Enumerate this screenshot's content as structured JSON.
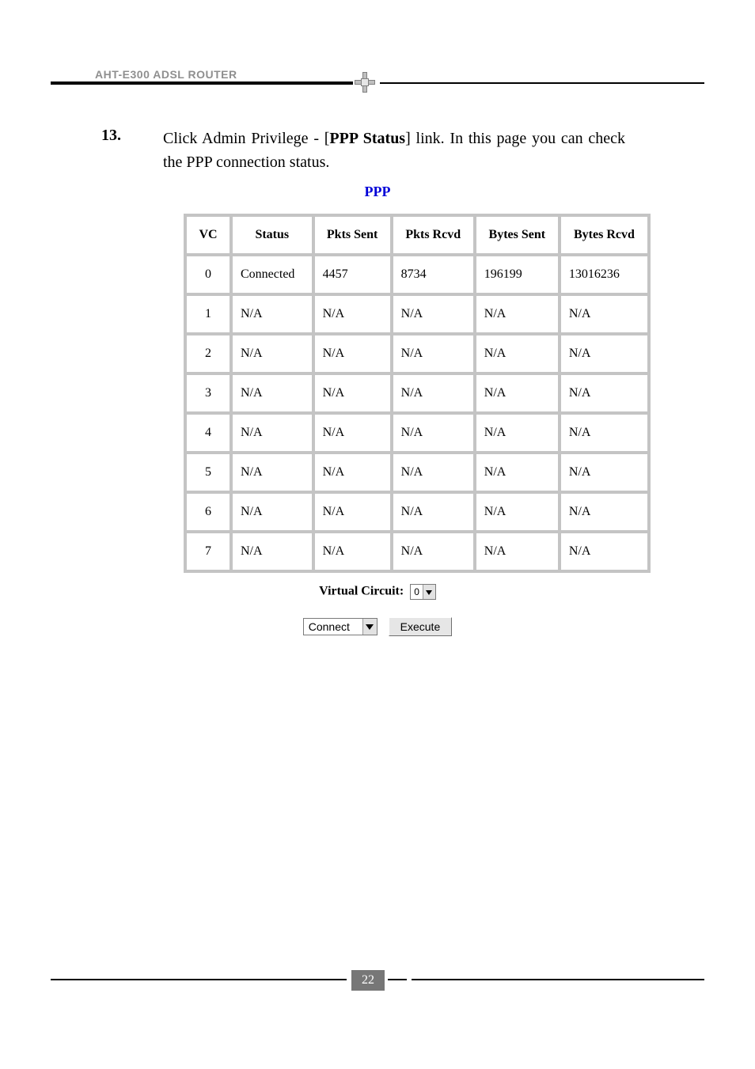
{
  "header": {
    "product": "AHT-E300 ADSL ROUTER"
  },
  "step": {
    "number": "13.",
    "text_pre": "Click Admin Privilege - [",
    "text_bold": "PPP Status",
    "text_post": "] link. In this page you can check the PPP connection status."
  },
  "section": {
    "heading": "PPP"
  },
  "table": {
    "columns": [
      "VC",
      "Status",
      "Pkts Sent",
      "Pkts Rcvd",
      "Bytes Sent",
      "Bytes Rcvd"
    ],
    "rows": [
      [
        "0",
        "Connected",
        "4457",
        "8734",
        "196199",
        "13016236"
      ],
      [
        "1",
        "N/A",
        "N/A",
        "N/A",
        "N/A",
        "N/A"
      ],
      [
        "2",
        "N/A",
        "N/A",
        "N/A",
        "N/A",
        "N/A"
      ],
      [
        "3",
        "N/A",
        "N/A",
        "N/A",
        "N/A",
        "N/A"
      ],
      [
        "4",
        "N/A",
        "N/A",
        "N/A",
        "N/A",
        "N/A"
      ],
      [
        "5",
        "N/A",
        "N/A",
        "N/A",
        "N/A",
        "N/A"
      ],
      [
        "6",
        "N/A",
        "N/A",
        "N/A",
        "N/A",
        "N/A"
      ],
      [
        "7",
        "N/A",
        "N/A",
        "N/A",
        "N/A",
        "N/A"
      ]
    ]
  },
  "vc": {
    "label": "Virtual Circuit:",
    "selected": "0"
  },
  "controls": {
    "action_selected": "Connect",
    "execute_label": "Execute"
  },
  "footer": {
    "page": "22"
  }
}
